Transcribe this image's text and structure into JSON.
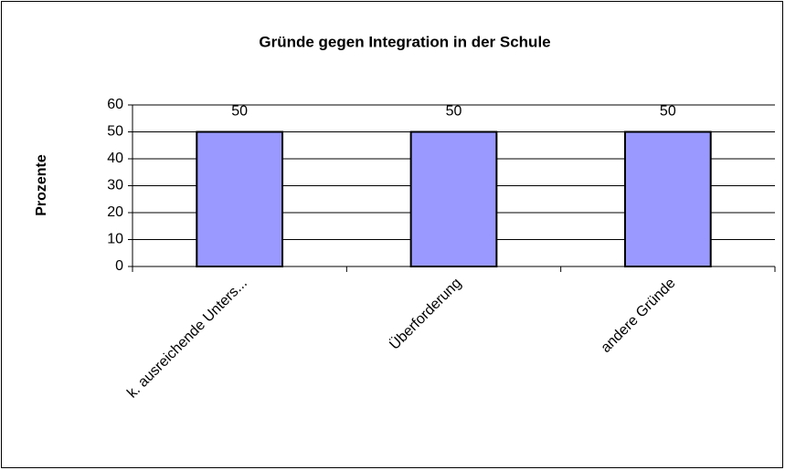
{
  "chart_data": {
    "type": "bar",
    "title": "Gründe gegen Integration in der Schule",
    "y_label": "Prozente",
    "categories": [
      "k. ausreichende Unters...",
      "Überforderung",
      "andere Gründe"
    ],
    "values": [
      50,
      50,
      50
    ],
    "color": "#9999ff",
    "ylim": [
      0,
      60
    ],
    "yticks": [
      0,
      10,
      20,
      30,
      40,
      50,
      60
    ],
    "grid": true
  }
}
